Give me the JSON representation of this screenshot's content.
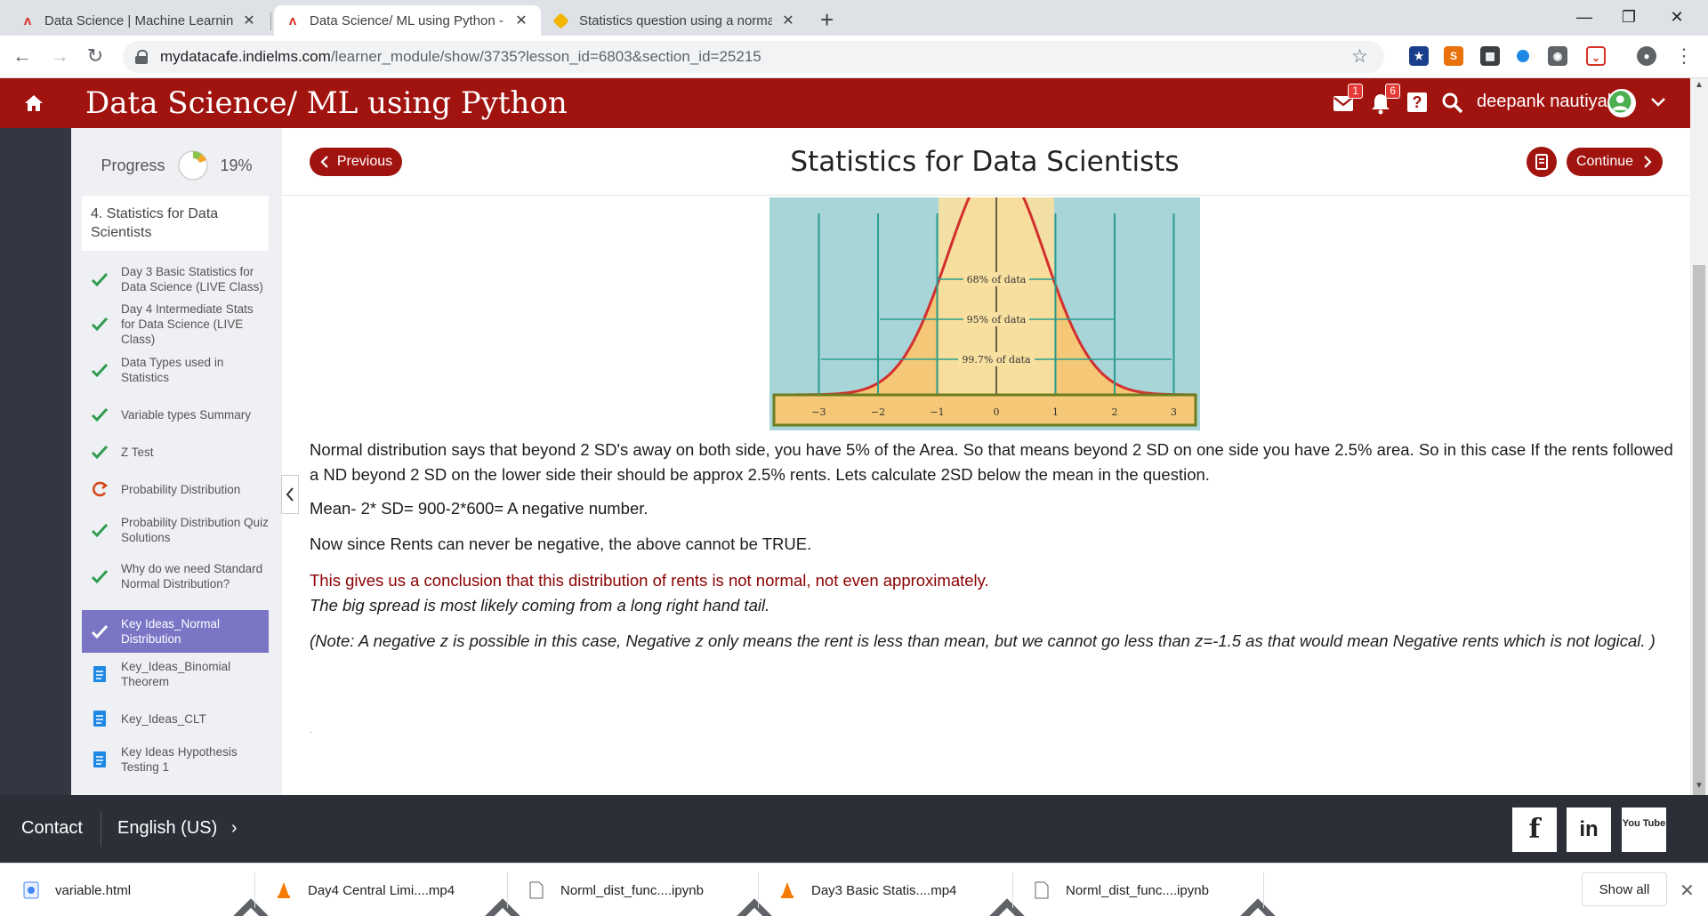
{
  "browser": {
    "tabs": [
      {
        "title": "Data Science | Machine Learning",
        "active": false
      },
      {
        "title": "Data Science/ ML using Python -",
        "active": true
      },
      {
        "title": "Statistics question using a norma",
        "active": false
      }
    ],
    "new_tab": "+",
    "url_host": "mydatacafe.indielms.com",
    "url_path": "/learner_module/show/3735?lesson_id=6803&section_id=25215"
  },
  "header": {
    "title": "Data Science/ ML using Python",
    "mail_badge": "1",
    "notif_badge": "6",
    "help": "?",
    "user_name": "deepank nautiyal"
  },
  "sidebar": {
    "progress_label": "Progress",
    "progress_value": "19%",
    "progress_fraction": 0.19,
    "module": "4. Statistics for Data Scientists",
    "lessons": [
      {
        "label": "Day 3 Basic Statistics for Data Science (LIVE Class)",
        "status": "done"
      },
      {
        "label": "Day 4 Intermediate Stats for Data Science (LIVE Class)",
        "status": "done"
      },
      {
        "label": "Data Types used in Statistics",
        "status": "done"
      },
      {
        "label": "Variable types Summary",
        "status": "done"
      },
      {
        "label": "Z Test",
        "status": "done"
      },
      {
        "label": "Probability Distribution",
        "status": "in-progress"
      },
      {
        "label": "Probability Distribution Quiz Solutions",
        "status": "done"
      },
      {
        "label": "Why do we need Standard Normal Distribution?",
        "status": "done"
      },
      {
        "label": "Key Ideas_Normal Distribution",
        "status": "active"
      },
      {
        "label": "Key_Ideas_Binomial Theorem",
        "status": "doc"
      },
      {
        "label": "Key_Ideas_CLT",
        "status": "doc"
      },
      {
        "label": "Key Ideas Hypothesis Testing 1",
        "status": "doc"
      }
    ]
  },
  "main": {
    "previous_label": "Previous",
    "lesson_title": "Statistics for Data Scientists",
    "continue_label": "Continue",
    "figure": {
      "band_68": "68% of data",
      "band_95": "95% of data",
      "band_997": "99.7% of data",
      "ticks": [
        "−3",
        "−2",
        "−1",
        "0",
        "1",
        "2",
        "3"
      ]
    },
    "paragraphs": {
      "p1": "Normal distribution says that beyond 2 SD's away on both side, you have 5% of the Area. So that means beyond 2 SD on one side you have 2.5% area. So in this case If the rents followed a ND beyond 2 SD on the lower side their should be approx 2.5% rents. Lets calculate 2SD below the mean in the question.",
      "p2": "Mean- 2* SD= 900-2*600= A negative number.",
      "p3": "Now since Rents can never be negative, the above cannot be TRUE.",
      "p4": "This gives us a conclusion that this distribution of rents is not normal, not even approximately.",
      "p5": "The big spread is most likely coming from a long right hand tail.",
      "p6": "(Note: A negative z is possible in this case, Negative z only means the rent is less than mean, but we cannot go less than z=-1.5 as that would mean Negative rents which is not logical. )",
      "dot": "."
    }
  },
  "footer": {
    "contact": "Contact",
    "language": "English (US)",
    "social": [
      "f",
      "in",
      "You Tube"
    ]
  },
  "downloads": {
    "items": [
      "variable.html",
      "Day4 Central Limi....mp4",
      "Norml_dist_func....ipynb",
      "Day3  Basic Statis....mp4",
      "Norml_dist_func....ipynb"
    ],
    "show_all": "Show all"
  },
  "colors": {
    "brand_red": "#a1130f",
    "active_lesson": "#7b75c6",
    "check_green": "#2e9c4f",
    "figure_bg": "#a8d5d8",
    "curve": "#d32f2f",
    "footer": "#2c2f38"
  }
}
